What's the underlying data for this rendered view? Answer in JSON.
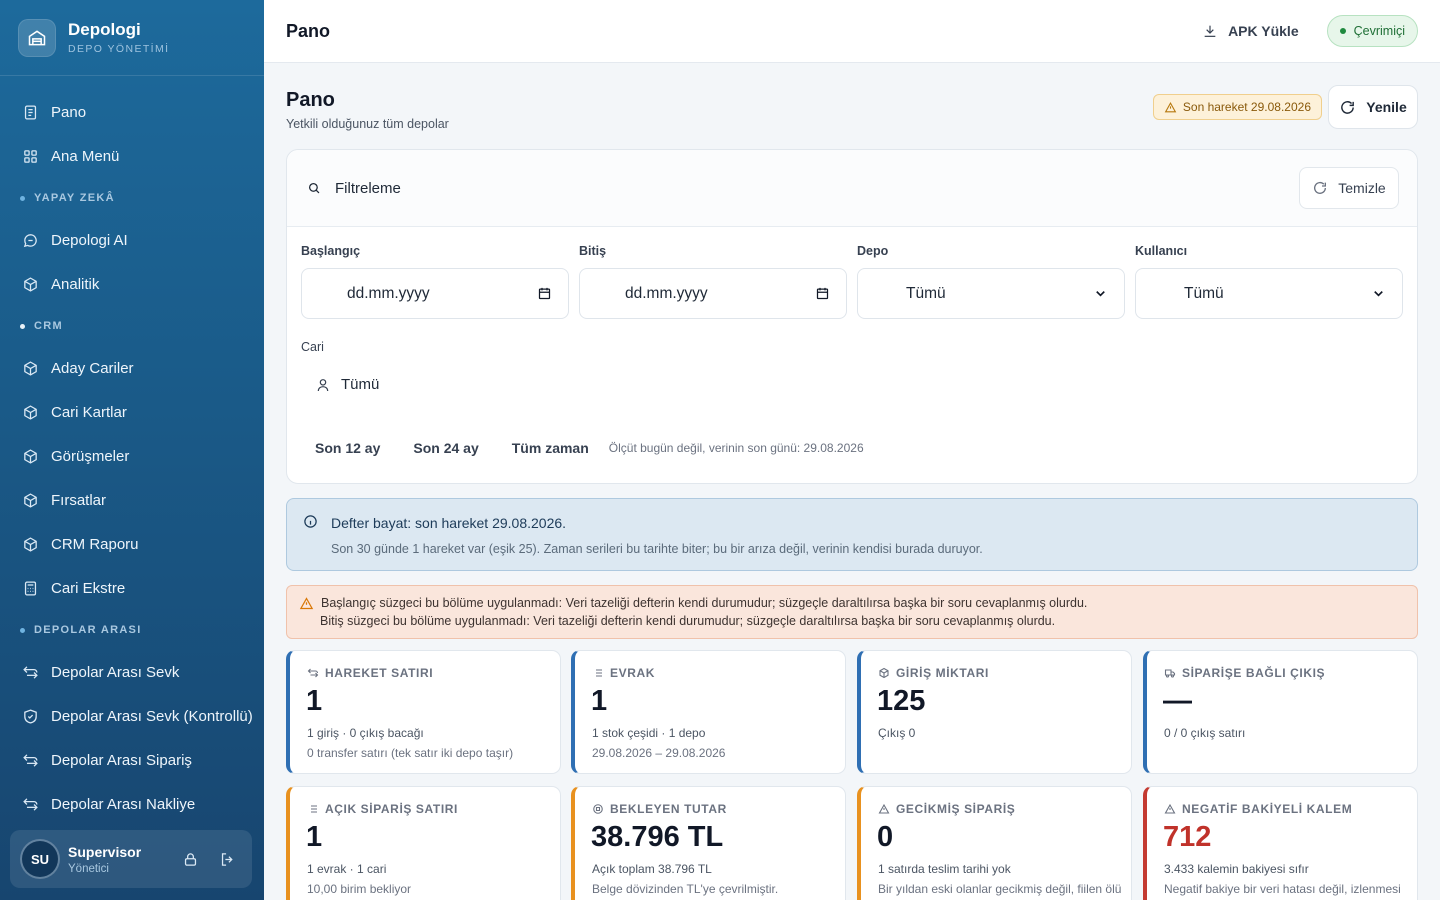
{
  "brand": {
    "title": "Depologi",
    "subtitle": "DEPO YÖNETİMİ"
  },
  "sidebar": {
    "items_top": [
      {
        "label": "Pano",
        "icon": "clipboard-icon"
      },
      {
        "label": "Ana Menü",
        "icon": "grid-icon"
      }
    ],
    "section_ai": "YAPAY ZEKÂ",
    "items_ai": [
      {
        "label": "Depologi AI",
        "icon": "chat-icon"
      },
      {
        "label": "Analitik",
        "icon": "cube-icon"
      }
    ],
    "section_crm": "CRM",
    "items_crm": [
      {
        "label": "Aday Cariler",
        "icon": "cube-icon"
      },
      {
        "label": "Cari Kartlar",
        "icon": "cube-icon"
      },
      {
        "label": "Görüşmeler",
        "icon": "cube-icon"
      },
      {
        "label": "Fırsatlar",
        "icon": "cube-icon"
      },
      {
        "label": "CRM Raporu",
        "icon": "cube-icon"
      },
      {
        "label": "Cari Ekstre",
        "icon": "calculator-icon"
      }
    ],
    "section_depolar": "DEPOLAR ARASI",
    "items_depolar": [
      {
        "label": "Depolar Arası Sevk",
        "icon": "transfer-icon"
      },
      {
        "label": "Depolar Arası Sevk (Kontrollü)",
        "icon": "shield-icon"
      },
      {
        "label": "Depolar Arası Sipariş",
        "icon": "transfer-icon"
      },
      {
        "label": "Depolar Arası Nakliye",
        "icon": "transfer-icon"
      }
    ]
  },
  "user": {
    "initials": "SU",
    "name": "Supervisor",
    "role": "Yönetici"
  },
  "topbar": {
    "title": "Pano",
    "apk_label": "APK Yükle",
    "status": "Çevrimiçi"
  },
  "page": {
    "title": "Pano",
    "subtitle": "Yetkili olduğunuz tüm depolar",
    "stale_badge": "Son hareket 29.08.2026",
    "refresh_label": "Yenile"
  },
  "filter": {
    "title": "Filtreleme",
    "clear_label": "Temizle",
    "start": {
      "label": "Başlangıç",
      "placeholder": "dd.mm.yyyy"
    },
    "end": {
      "label": "Bitiş",
      "placeholder": "dd.mm.yyyy"
    },
    "depot": {
      "label": "Depo",
      "value": "Tümü"
    },
    "user": {
      "label": "Kullanıcı",
      "value": "Tümü"
    },
    "cari": {
      "label": "Cari",
      "value": "Tümü"
    },
    "quick": [
      "Son 12 ay",
      "Son 24 ay",
      "Tüm zaman"
    ],
    "quick_note": "Ölçüt bugün değil, verinin son günü: 29.08.2026"
  },
  "info": {
    "title": "Defter bayat: son hareket 29.08.2026.",
    "text": "Son 30 günde 1 hareket var (eşik 25). Zaman serileri bu tarihte biter; bu bir arıza değil, verinin kendisi burada duruyor."
  },
  "warning": {
    "line1": "Başlangıç süzgeci bu bölüme uygulanmadı: Veri tazeliği defterin kendi durumudur; süzgeçle daraltılırsa başka bir soru cevaplanmış olurdu.",
    "line2": "Bitiş süzgeci bu bölüme uygulanmadı: Veri tazeliği defterin kendi durumudur; süzgeçle daraltılırsa başka bir soru cevaplanmış olurdu."
  },
  "cards": [
    {
      "title": "HAREKET SATIRI",
      "value": "1",
      "line1": "1 giriş · 0 çıkış bacağı",
      "line2": "0 transfer satırı (tek satır iki depo taşır)",
      "accent": "#2f6fb3"
    },
    {
      "title": "EVRAK",
      "value": "1",
      "line1": "1 stok çeşidi · 1 depo",
      "line2": "29.08.2026 – 29.08.2026",
      "accent": "#2f6fb3"
    },
    {
      "title": "GİRİŞ MİKTARI",
      "value": "125",
      "line1": "Çıkış 0",
      "line2": "",
      "accent": "#2f6fb3"
    },
    {
      "title": "SİPARİŞE BAĞLI ÇIKIŞ",
      "value": "—",
      "line1": "0 / 0 çıkış satırı",
      "line2": "",
      "accent": "#2f6fb3"
    },
    {
      "title": "AÇIK SİPARİŞ SATIRI",
      "value": "1",
      "line1": "1 evrak · 1 cari",
      "line2": "10,00 birim bekliyor",
      "accent": "#e8911f"
    },
    {
      "title": "BEKLEYEN TUTAR",
      "value": "38.796 TL",
      "line1": "Açık toplam 38.796 TL",
      "line2": "Belge dövizinden TL'ye çevrilmiştir.",
      "accent": "#e8911f"
    },
    {
      "title": "GECİKMİŞ SİPARİŞ",
      "value": "0",
      "line1": "1 satırda teslim tarihi yok",
      "line2": "Bir yıldan eski olanlar gecikmiş değil, fiilen ölü",
      "accent": "#e8911f"
    },
    {
      "title": "NEGATİF BAKİYELİ KALEM",
      "value": "712",
      "line1": "3.433 kalemin bakiyesi sıfır",
      "line2": "Negatif bakiye bir veri hatası değil, izlenmesi",
      "accent": "#c43a31"
    }
  ]
}
